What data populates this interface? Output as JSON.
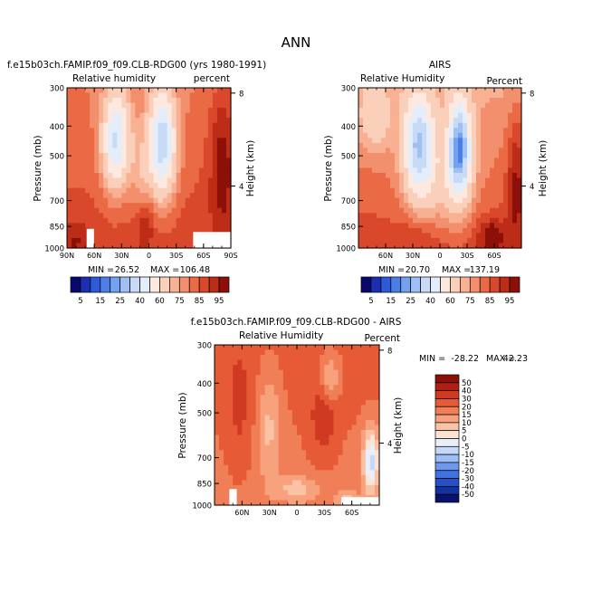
{
  "page_title": "ANN",
  "chart_data": [
    {
      "type": "heatmap",
      "title": "f.e15b03ch.FAMIP.f09_f09.CLB-RDG00 (yrs 1980-1991)",
      "subtitle_left": "Relative humidity",
      "subtitle_right": "percent",
      "ylabel": "Pressure (mb)",
      "ylabel_right": "Height (km)",
      "ylim": [
        1000,
        300
      ],
      "yticks": [
        "300",
        "400",
        "500",
        "700",
        "850",
        "1000"
      ],
      "yticks_right": [
        "8",
        "4"
      ],
      "xticks": [
        "90N",
        "60N",
        "30N",
        "0",
        "30S",
        "60S",
        "90S"
      ],
      "min_label": "MIN =",
      "min_value": "26.52",
      "max_label": "MAX =",
      "max_value": "106.48",
      "colorbar_labels": [
        "5",
        "15",
        "25",
        "40",
        "60",
        "75",
        "85",
        "95"
      ]
    },
    {
      "type": "heatmap",
      "title": "AIRS",
      "subtitle_left": "Relative Humidity",
      "subtitle_right": "Percent",
      "ylabel": "Pressure (mb)",
      "ylabel_right": "Height (km)",
      "ylim": [
        1000,
        300
      ],
      "yticks": [
        "300",
        "400",
        "500",
        "700",
        "850",
        "1000"
      ],
      "yticks_right": [
        "8",
        "4"
      ],
      "xticks": [
        "60N",
        "30N",
        "0",
        "30S",
        "60S"
      ],
      "min_label": "MIN =",
      "min_value": "20.70",
      "max_label": "MAX =",
      "max_value": "137.19",
      "colorbar_labels": [
        "5",
        "15",
        "25",
        "40",
        "60",
        "75",
        "85",
        "95"
      ]
    },
    {
      "type": "heatmap",
      "title": "f.e15b03ch.FAMIP.f09_f09.CLB-RDG00 - AIRS",
      "subtitle_left": "Relative Humidity",
      "subtitle_right": "Percent",
      "ylabel": "Pressure (mb)",
      "ylabel_right": "Height (km)",
      "ylim": [
        1000,
        300
      ],
      "yticks": [
        "300",
        "400",
        "500",
        "700",
        "850",
        "1000"
      ],
      "yticks_right": [
        "8",
        "4"
      ],
      "xticks": [
        "60N",
        "30N",
        "0",
        "30S",
        "60S"
      ],
      "min_label": "MIN =",
      "min_value": "-28.22",
      "max_label": "MAX =",
      "max_value": "42.23",
      "colorbar_labels": [
        "50",
        "40",
        "30",
        "20",
        "15",
        "10",
        "5",
        "0",
        "-5",
        "-10",
        "-15",
        "-20",
        "-30",
        "-40",
        "-50"
      ]
    }
  ],
  "colors": {
    "rh_scale": [
      "#08086e",
      "#1c2fb0",
      "#2d5ad6",
      "#4a7fe8",
      "#74a1f0",
      "#a0c0f4",
      "#c8dbf6",
      "#e4eefa",
      "#fde9df",
      "#fbd0bb",
      "#f8b193",
      "#f28f6c",
      "#ea6a45",
      "#d9482b",
      "#bd2c16",
      "#8c1008"
    ],
    "diff_scale": [
      "#8c1008",
      "#b41e12",
      "#d03a22",
      "#e65a36",
      "#f07e56",
      "#f7a17d",
      "#fbc3a6",
      "#fde3d3",
      "#e8eefa",
      "#c6d8f8",
      "#9cbdf6",
      "#6c99ee",
      "#3f73e0",
      "#2550c6",
      "#1232a0",
      "#08126e"
    ]
  }
}
